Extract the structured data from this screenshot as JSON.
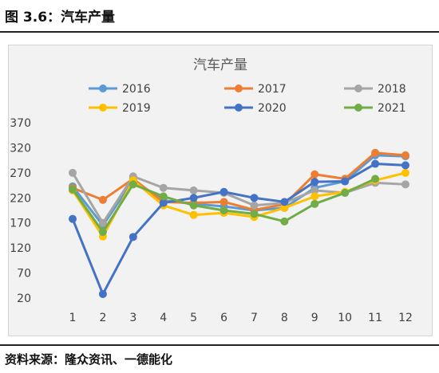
{
  "figure_title": "图 3.6：汽车产量",
  "source_text": "资料来源：隆众资讯、一德能化",
  "chart_data": {
    "type": "line",
    "title": "汽车产量",
    "xlabel": "",
    "ylabel": "",
    "x": [
      "1",
      "2",
      "3",
      "4",
      "5",
      "6",
      "7",
      "8",
      "9",
      "10",
      "11",
      "12"
    ],
    "ylim": [
      20,
      370
    ],
    "yticks": [
      20,
      70,
      120,
      170,
      220,
      270,
      320,
      370
    ],
    "grid": false,
    "legend_position": "top",
    "series": [
      {
        "name": "2016",
        "color": "#5b9bd5",
        "values": [
          243,
          165,
          255,
          215,
          208,
          203,
          195,
          200,
          240,
          253,
          305,
          303
        ]
      },
      {
        "name": "2017",
        "color": "#ed7d31",
        "values": [
          240,
          216,
          258,
          212,
          210,
          212,
          196,
          207,
          267,
          258,
          310,
          305
        ]
      },
      {
        "name": "2018",
        "color": "#a5a5a5",
        "values": [
          270,
          170,
          263,
          240,
          235,
          230,
          205,
          210,
          235,
          230,
          250,
          247
        ]
      },
      {
        "name": "2019",
        "color": "#ffc000",
        "values": [
          235,
          143,
          255,
          205,
          186,
          190,
          182,
          200,
          223,
          232,
          255,
          270
        ]
      },
      {
        "name": "2020",
        "color": "#4472c4",
        "values": [
          178,
          28,
          142,
          210,
          220,
          232,
          220,
          212,
          252,
          253,
          288,
          285
        ]
      },
      {
        "name": "2021",
        "color": "#70ad47",
        "values": [
          237,
          152,
          247,
          223,
          205,
          195,
          188,
          173,
          208,
          230,
          258,
          null
        ]
      }
    ]
  }
}
